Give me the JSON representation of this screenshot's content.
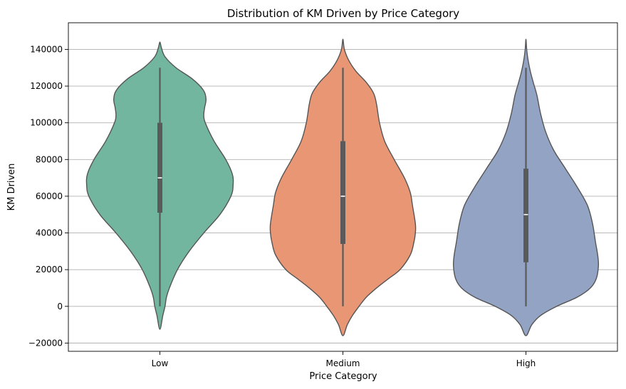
{
  "chart_data": {
    "type": "violin",
    "title": "Distribution of KM Driven by Price Category",
    "xlabel": "Price Category",
    "ylabel": "KM Driven",
    "ylim": [
      -24500,
      154500
    ],
    "yticks": [
      -20000,
      0,
      20000,
      40000,
      60000,
      80000,
      100000,
      120000,
      140000
    ],
    "ytick_labels": [
      "−20000",
      "0",
      "20000",
      "40000",
      "60000",
      "80000",
      "100000",
      "120000",
      "140000"
    ],
    "grid": "horizontal",
    "categories": [
      "Low",
      "Medium",
      "High"
    ],
    "series": [
      {
        "category": "Low",
        "color": "#72b6a0",
        "min": 0,
        "q1": 51000,
        "median": 70000,
        "q3": 100000,
        "max": 130000,
        "density": [
          [
            -12500,
            0.0
          ],
          [
            -5000,
            0.04
          ],
          [
            0,
            0.07
          ],
          [
            5000,
            0.09
          ],
          [
            10000,
            0.13
          ],
          [
            20000,
            0.24
          ],
          [
            30000,
            0.4
          ],
          [
            40000,
            0.6
          ],
          [
            50000,
            0.82
          ],
          [
            60000,
            0.97
          ],
          [
            66000,
            1.0
          ],
          [
            72000,
            0.99
          ],
          [
            80000,
            0.9
          ],
          [
            90000,
            0.74
          ],
          [
            100000,
            0.62
          ],
          [
            104000,
            0.6
          ],
          [
            108000,
            0.61
          ],
          [
            113000,
            0.63
          ],
          [
            118000,
            0.59
          ],
          [
            124000,
            0.44
          ],
          [
            130000,
            0.22
          ],
          [
            136000,
            0.07
          ],
          [
            141000,
            0.02
          ],
          [
            144000,
            0.0
          ]
        ]
      },
      {
        "category": "Medium",
        "color": "#e99674",
        "min": 0,
        "q1": 34000,
        "median": 60000,
        "q3": 90000,
        "max": 130000,
        "density": [
          [
            -16000,
            0.0
          ],
          [
            -10000,
            0.06
          ],
          [
            -5000,
            0.13
          ],
          [
            0,
            0.22
          ],
          [
            5000,
            0.32
          ],
          [
            10000,
            0.46
          ],
          [
            15000,
            0.62
          ],
          [
            20000,
            0.78
          ],
          [
            28000,
            0.92
          ],
          [
            35000,
            0.97
          ],
          [
            40000,
            0.99
          ],
          [
            45000,
            0.99
          ],
          [
            55000,
            0.95
          ],
          [
            62000,
            0.92
          ],
          [
            70000,
            0.84
          ],
          [
            80000,
            0.7
          ],
          [
            90000,
            0.57
          ],
          [
            100000,
            0.5
          ],
          [
            110000,
            0.46
          ],
          [
            116000,
            0.42
          ],
          [
            122000,
            0.32
          ],
          [
            128000,
            0.18
          ],
          [
            134000,
            0.08
          ],
          [
            140000,
            0.02
          ],
          [
            145500,
            0.0
          ]
        ]
      },
      {
        "category": "High",
        "color": "#93a3c4",
        "min": 0,
        "q1": 24000,
        "median": 50000,
        "q3": 75000,
        "max": 130000,
        "density": [
          [
            -16000,
            0.0
          ],
          [
            -10000,
            0.08
          ],
          [
            -5000,
            0.2
          ],
          [
            0,
            0.42
          ],
          [
            5000,
            0.7
          ],
          [
            10000,
            0.88
          ],
          [
            15000,
            0.96
          ],
          [
            22000,
            0.99
          ],
          [
            28000,
            0.98
          ],
          [
            35000,
            0.95
          ],
          [
            45000,
            0.91
          ],
          [
            55000,
            0.84
          ],
          [
            65000,
            0.7
          ],
          [
            75000,
            0.54
          ],
          [
            85000,
            0.38
          ],
          [
            95000,
            0.27
          ],
          [
            105000,
            0.2
          ],
          [
            115000,
            0.15
          ],
          [
            122000,
            0.1
          ],
          [
            128000,
            0.06
          ],
          [
            134000,
            0.03
          ],
          [
            140000,
            0.01
          ],
          [
            145500,
            0.0
          ]
        ]
      }
    ]
  }
}
